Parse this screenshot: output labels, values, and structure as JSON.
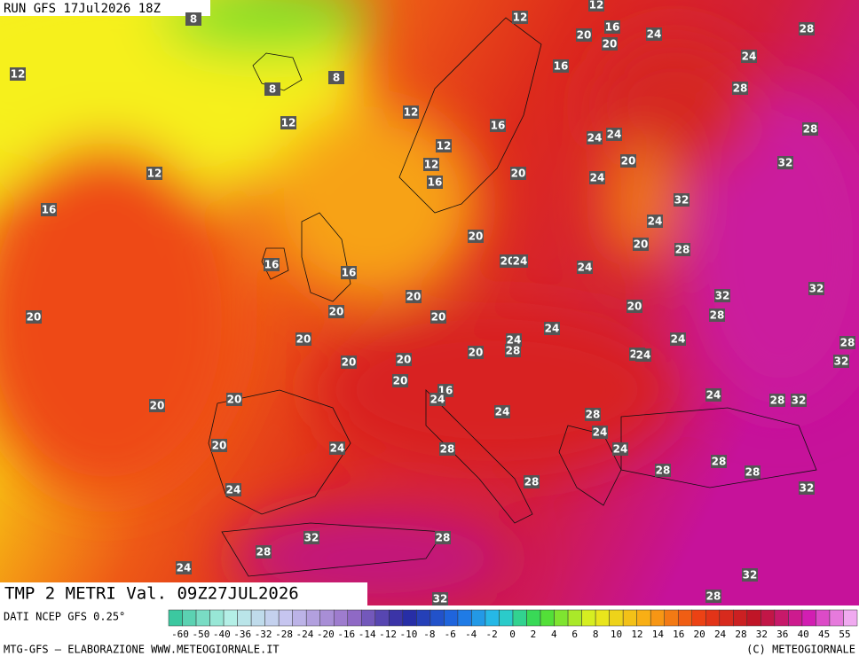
{
  "header": {
    "run": "RUN GFS 17Jul2026 18Z"
  },
  "title": "TMP 2 METRI Val. 09Z27JUL2026",
  "source": "DATI NCEP GFS 0.25°",
  "footer_left": "MTG-GFS — ELABORAZIONE WWW.METEOGIORNALE.IT",
  "footer_right": "(C) METEOGIORNALE",
  "colorbar_labels": [
    -60,
    -50,
    -40,
    -36,
    -32,
    -28,
    -24,
    -20,
    -16,
    -14,
    -12,
    -10,
    -8,
    -6,
    -4,
    -2,
    0,
    2,
    4,
    6,
    8,
    10,
    12,
    14,
    16,
    20,
    24,
    28,
    32,
    36,
    40,
    45,
    55
  ],
  "map_labels": [
    12,
    12,
    20,
    16,
    20,
    24,
    28,
    12,
    8,
    8,
    8,
    16,
    24,
    28,
    12,
    12,
    16,
    24,
    24,
    20,
    28,
    12,
    12,
    32,
    12,
    16,
    20,
    24,
    16,
    32,
    24,
    20,
    20,
    28,
    16,
    16,
    20,
    24,
    24,
    20,
    32,
    32,
    20,
    20,
    20,
    20,
    28,
    20,
    24,
    28,
    24,
    24,
    28,
    20,
    20,
    20,
    24,
    24,
    32,
    20,
    16,
    24,
    20,
    20,
    24,
    28,
    32,
    24,
    28,
    24,
    20,
    24,
    28,
    24,
    28,
    28,
    28,
    28,
    24,
    32,
    32,
    28,
    28,
    24,
    32,
    32,
    28
  ]
}
